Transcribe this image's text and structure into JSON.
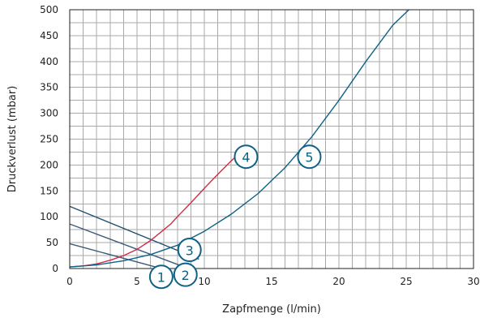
{
  "chart_data": {
    "type": "line",
    "title": "",
    "xlabel": "Zapfmenge (l/min)",
    "ylabel": "Druckverlust (mbar)",
    "xlim": [
      0,
      30
    ],
    "ylim": [
      0,
      500
    ],
    "x_ticks": [
      0,
      5,
      10,
      15,
      20,
      25,
      30
    ],
    "y_ticks": [
      0,
      50,
      100,
      150,
      200,
      250,
      300,
      350,
      400,
      450,
      500
    ],
    "x_minor_step": 1,
    "y_minor_step": 25,
    "grid": true,
    "series": [
      {
        "name": "1",
        "color": "#3c5a78",
        "x": [
          0,
          6.5
        ],
        "y": [
          48,
          2
        ]
      },
      {
        "name": "2",
        "color": "#3c5a78",
        "x": [
          0,
          8.6
        ],
        "y": [
          86,
          2
        ]
      },
      {
        "name": "3",
        "color": "#1d5070",
        "x": [
          0,
          9.6
        ],
        "y": [
          120,
          18
        ]
      },
      {
        "name": "4",
        "color": "#d42a45",
        "x": [
          0,
          1,
          2,
          3,
          4,
          5,
          6,
          7,
          7.5,
          8,
          9,
          10,
          11,
          12,
          12.5
        ],
        "y": [
          3,
          5,
          9,
          16,
          25,
          37,
          54,
          75,
          86,
          100,
          127,
          155,
          182,
          208,
          220
        ]
      },
      {
        "name": "5",
        "color": "#0f6286",
        "x": [
          0,
          2,
          4,
          6,
          8,
          10,
          12,
          14,
          16,
          18,
          20,
          22,
          24,
          25.2
        ],
        "y": [
          3,
          7,
          15,
          27,
          45,
          72,
          105,
          145,
          195,
          255,
          325,
          400,
          470,
          500
        ]
      }
    ],
    "markers": [
      {
        "label": "1",
        "color": "#0f6286",
        "x": 6.8,
        "y": -16
      },
      {
        "label": "2",
        "color": "#0f6286",
        "x": 8.6,
        "y": -12
      },
      {
        "label": "3",
        "color": "#0f6286",
        "x": 8.9,
        "y": 36
      },
      {
        "label": "4",
        "color": "#0f6286",
        "x": 13.1,
        "y": 216
      },
      {
        "label": "5",
        "color": "#0f6286",
        "x": 17.8,
        "y": 216
      }
    ]
  }
}
